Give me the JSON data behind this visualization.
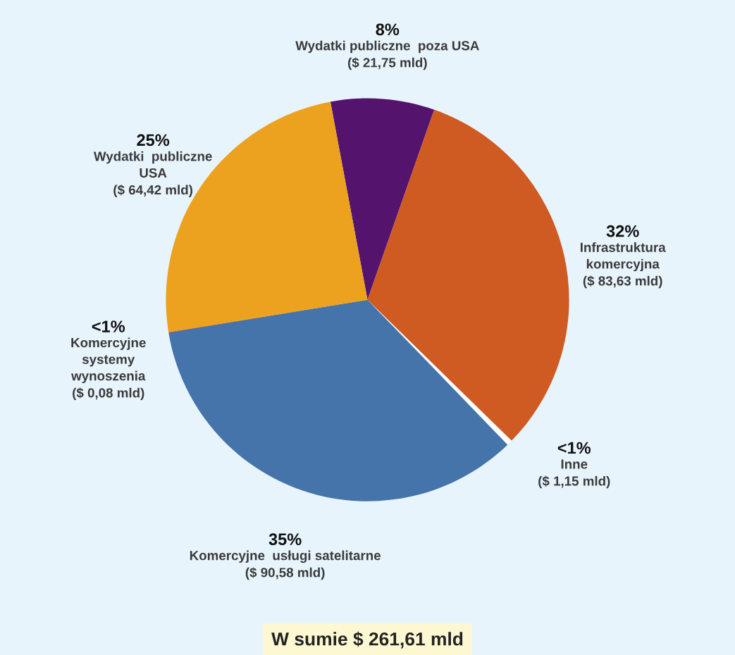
{
  "chart_data": {
    "type": "pie",
    "categories": [
      "Wydatki publiczne  poza USA",
      "Infrastruktura\nkomercyjna",
      "Inne",
      "Komercyjne  usługi satelitarne",
      "Komercyjne\nsystemy\nwynoszenia",
      "Wydatki  publiczne\nUSA"
    ],
    "values": [
      21.75,
      83.63,
      1.15,
      90.58,
      0.08,
      64.42
    ],
    "colors": [
      "#54146e",
      "#cf5a22",
      "#ffffff",
      "#4574aa",
      "#a01018",
      "#eca21f"
    ],
    "value_labels": [
      "($ 21,75 mld)",
      "($ 83,63 mld)",
      "($ 1,15 mld)",
      "($ 90,58 mld)",
      "($ 0,08 mld)",
      "($ 64,42 mld)"
    ],
    "annotations": [
      "8%",
      "32%",
      "<1%",
      "35%",
      "<1%",
      "25%",
      "W sumie $ 261,61 mld"
    ]
  }
}
